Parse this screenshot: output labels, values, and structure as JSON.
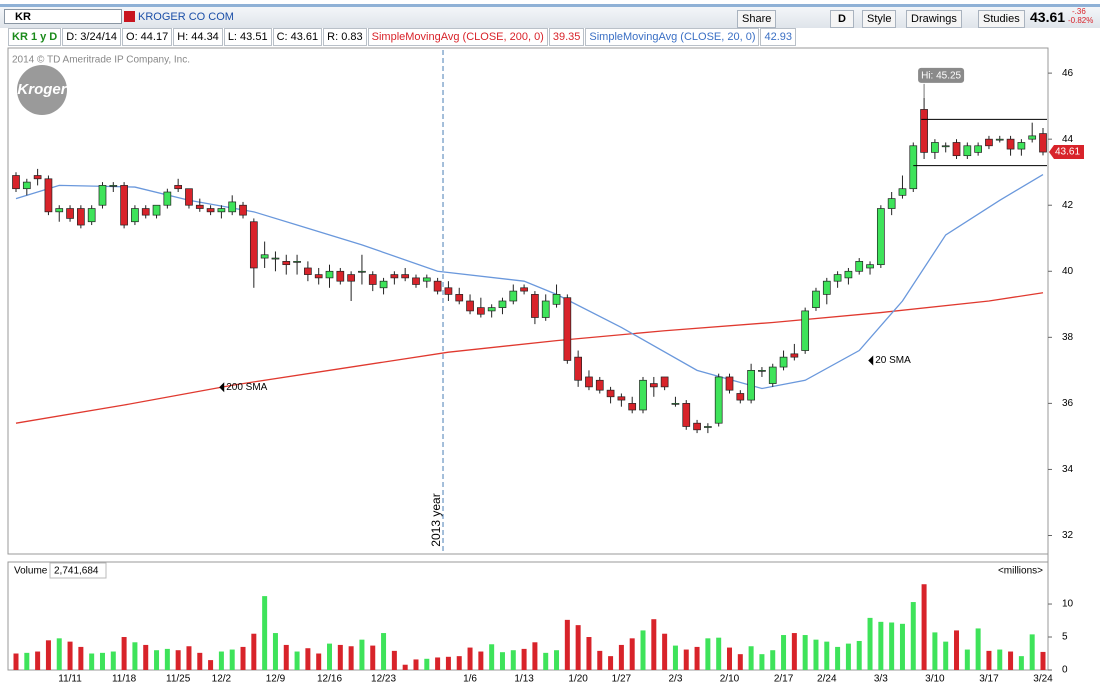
{
  "toolbar": {
    "symbol": "KR",
    "company": "KROGER CO COM",
    "share": "Share",
    "period": "D",
    "style": "Style",
    "drawings": "Drawings",
    "studies": "Studies",
    "last": "43.61",
    "change": "-.36",
    "change_pct": "-0.82%"
  },
  "status": {
    "chart": "KR 1 y D",
    "date": "D: 3/24/14",
    "open": "O: 44.17",
    "high": "H: 44.34",
    "low": "L: 43.51",
    "close": "C: 43.61",
    "range": "R: 0.83",
    "sma200": "SimpleMovingAvg (CLOSE, 200, 0)",
    "sma200_value": "39.35",
    "sma20": "SimpleMovingAvg (CLOSE, 20, 0)",
    "sma20_value": "42.93"
  },
  "copyright": "2014 © TD Ameritrade IP Company, Inc.",
  "logo": "Kroger",
  "volume_panel": {
    "label": "Volume",
    "value": "2,741,684",
    "units": "<millions>"
  },
  "chart_data": {
    "type": "candlestick",
    "categories": [
      null,
      null,
      null,
      null,
      null,
      "11/11",
      null,
      null,
      null,
      null,
      "11/18",
      null,
      null,
      null,
      null,
      "11/25",
      null,
      null,
      null,
      "12/2",
      null,
      null,
      null,
      null,
      "12/9",
      null,
      null,
      null,
      null,
      "12/16",
      null,
      null,
      null,
      null,
      "12/23",
      null,
      null,
      null,
      null,
      null,
      null,
      null,
      "1/6",
      null,
      null,
      null,
      null,
      "1/13",
      null,
      null,
      null,
      null,
      "1/20",
      null,
      null,
      null,
      "1/27",
      null,
      null,
      null,
      null,
      "2/3",
      null,
      null,
      null,
      null,
      "2/10",
      null,
      null,
      null,
      null,
      "2/17",
      null,
      null,
      null,
      "2/24",
      null,
      null,
      null,
      null,
      "3/3",
      null,
      null,
      null,
      null,
      "3/10",
      null,
      null,
      null,
      null,
      "3/17",
      null,
      null,
      null,
      null,
      "3/24"
    ],
    "open": [
      42.9,
      42.5,
      42.9,
      42.8,
      41.8,
      41.9,
      41.9,
      41.5,
      42.0,
      42.6,
      42.6,
      41.5,
      41.9,
      41.7,
      42.0,
      42.6,
      42.5,
      42.0,
      41.9,
      41.8,
      41.8,
      42.0,
      41.5,
      40.4,
      40.4,
      40.3,
      40.3,
      40.1,
      39.9,
      39.8,
      40.0,
      39.9,
      40.0,
      39.9,
      39.5,
      39.9,
      39.9,
      39.8,
      39.7,
      39.7,
      39.5,
      39.3,
      39.1,
      38.9,
      38.8,
      38.9,
      39.1,
      39.5,
      39.3,
      38.6,
      39.0,
      39.2,
      37.4,
      36.8,
      36.7,
      36.4,
      36.2,
      36.0,
      35.8,
      36.6,
      36.8,
      36.0,
      36.0,
      35.4,
      35.3,
      35.4,
      36.8,
      36.3,
      36.1,
      37.0,
      36.6,
      37.1,
      37.5,
      37.6,
      38.9,
      39.3,
      39.7,
      39.8,
      40.0,
      40.1,
      40.2,
      41.9,
      42.3,
      42.5,
      44.9,
      43.6,
      43.8,
      43.9,
      43.5,
      43.6,
      44.0,
      44.0,
      44.0,
      43.7,
      44.0,
      44.17
    ],
    "high": [
      43.0,
      42.8,
      43.1,
      42.9,
      42.0,
      42.0,
      42.0,
      42.0,
      42.7,
      42.7,
      42.7,
      42.0,
      42.0,
      42.0,
      42.5,
      42.8,
      42.5,
      42.2,
      42.0,
      42.0,
      42.3,
      42.1,
      41.6,
      40.9,
      40.6,
      40.5,
      40.5,
      40.3,
      40.1,
      40.2,
      40.1,
      40.0,
      40.5,
      40.0,
      39.8,
      40.0,
      40.1,
      39.9,
      39.9,
      39.8,
      39.7,
      39.5,
      39.3,
      39.2,
      39.0,
      39.2,
      39.6,
      39.6,
      39.4,
      39.3,
      39.6,
      39.3,
      37.6,
      37.0,
      36.8,
      36.5,
      36.3,
      36.2,
      36.8,
      36.8,
      36.8,
      36.2,
      36.1,
      35.5,
      35.4,
      36.9,
      36.9,
      36.4,
      37.2,
      37.1,
      37.2,
      37.6,
      37.8,
      38.9,
      39.5,
      39.8,
      40.0,
      40.1,
      40.4,
      40.3,
      42.0,
      42.4,
      42.9,
      43.9,
      45.25,
      44.0,
      43.9,
      44.0,
      43.9,
      43.9,
      44.1,
      44.1,
      44.1,
      44.0,
      44.5,
      44.34
    ],
    "low": [
      42.4,
      42.3,
      42.6,
      41.7,
      41.5,
      41.5,
      41.3,
      41.4,
      41.9,
      42.4,
      41.3,
      41.4,
      41.6,
      41.6,
      41.9,
      42.4,
      41.9,
      41.8,
      41.7,
      41.6,
      41.7,
      41.6,
      39.5,
      40.1,
      40.0,
      39.9,
      39.9,
      39.7,
      39.6,
      39.5,
      39.6,
      39.1,
      39.6,
      39.4,
      39.3,
      39.6,
      39.7,
      39.5,
      39.5,
      39.3,
      39.1,
      39.0,
      38.7,
      38.6,
      38.6,
      38.7,
      39.0,
      39.3,
      38.4,
      38.5,
      38.9,
      37.2,
      36.5,
      36.4,
      36.3,
      36.0,
      35.9,
      35.7,
      35.7,
      36.2,
      36.4,
      35.9,
      35.2,
      35.1,
      35.1,
      35.3,
      36.3,
      36.0,
      36.0,
      36.8,
      36.5,
      37.0,
      37.3,
      37.5,
      38.8,
      39.0,
      39.5,
      39.6,
      39.9,
      39.9,
      40.1,
      41.7,
      42.2,
      42.4,
      43.4,
      43.4,
      43.6,
      43.4,
      43.4,
      43.5,
      43.7,
      43.9,
      43.5,
      43.5,
      43.9,
      43.51
    ],
    "close": [
      42.5,
      42.7,
      42.8,
      41.8,
      41.9,
      41.6,
      41.4,
      41.9,
      42.6,
      42.6,
      41.4,
      41.9,
      41.7,
      42.0,
      42.4,
      42.5,
      42.0,
      41.9,
      41.8,
      41.9,
      42.1,
      41.7,
      40.1,
      40.5,
      40.4,
      40.2,
      40.3,
      39.9,
      39.8,
      40.0,
      39.7,
      39.7,
      40.0,
      39.6,
      39.7,
      39.8,
      39.8,
      39.6,
      39.8,
      39.4,
      39.3,
      39.1,
      38.8,
      38.7,
      38.9,
      39.1,
      39.4,
      39.4,
      38.6,
      39.1,
      39.3,
      37.3,
      36.7,
      36.5,
      36.4,
      36.2,
      36.1,
      35.8,
      36.7,
      36.5,
      36.5,
      36.0,
      35.3,
      35.2,
      35.3,
      36.8,
      36.4,
      36.1,
      37.0,
      37.0,
      37.1,
      37.4,
      37.4,
      38.8,
      39.4,
      39.7,
      39.9,
      40.0,
      40.3,
      40.2,
      41.9,
      42.2,
      42.5,
      43.8,
      43.6,
      43.9,
      43.8,
      43.5,
      43.8,
      43.8,
      43.8,
      44.0,
      43.7,
      43.9,
      44.1,
      43.61
    ],
    "volume": [
      2.5,
      2.6,
      2.8,
      4.5,
      4.8,
      4.3,
      3.5,
      2.5,
      2.6,
      2.8,
      5.0,
      4.2,
      3.8,
      3.0,
      3.2,
      3.0,
      3.6,
      2.6,
      1.5,
      2.8,
      3.1,
      3.5,
      5.5,
      11.2,
      5.6,
      3.8,
      2.8,
      3.3,
      2.5,
      4.0,
      3.8,
      3.6,
      4.6,
      3.7,
      5.6,
      2.9,
      0.8,
      1.6,
      1.7,
      1.9,
      2.0,
      2.1,
      3.4,
      2.8,
      3.9,
      2.7,
      3.0,
      3.2,
      4.2,
      2.6,
      3.0,
      7.6,
      6.8,
      5.0,
      2.9,
      2.1,
      3.8,
      4.8,
      6.0,
      7.7,
      5.5,
      3.7,
      3.1,
      3.5,
      4.8,
      4.9,
      3.4,
      2.4,
      3.6,
      2.4,
      3.0,
      5.3,
      5.6,
      5.3,
      4.6,
      4.3,
      3.5,
      4.0,
      4.4,
      7.9,
      7.3,
      7.2,
      7.0,
      10.3,
      13.0,
      5.7,
      4.3,
      6.0,
      3.1,
      6.3,
      2.9,
      3.1,
      2.8,
      2.1,
      5.4,
      2.74
    ],
    "up_color": "#3ee35a",
    "down_color": "#d8232a",
    "ylim": [
      31.5,
      46.7
    ],
    "yticks": [
      32,
      34,
      36,
      38,
      40,
      42,
      44,
      46
    ],
    "volume_ylim": [
      0,
      14.4
    ],
    "volume_yticks": [
      0,
      5,
      10
    ],
    "series": [
      {
        "name": "200 SMA",
        "color": "#e0392f",
        "x": [
          0,
          10,
          20,
          30,
          40,
          50,
          60,
          70,
          80,
          90,
          95
        ],
        "values": [
          35.4,
          35.95,
          36.55,
          37.05,
          37.55,
          37.9,
          38.2,
          38.45,
          38.75,
          39.1,
          39.35
        ]
      },
      {
        "name": "20 SMA",
        "color": "#6a98dc",
        "x": [
          0,
          4,
          11,
          16,
          22,
          26,
          32,
          39,
          47,
          50,
          56,
          63,
          69,
          73,
          78,
          82,
          86,
          91,
          95
        ],
        "values": [
          42.2,
          42.6,
          42.55,
          42.15,
          41.8,
          41.4,
          40.8,
          40.0,
          39.7,
          39.3,
          38.3,
          37.0,
          36.45,
          36.7,
          37.6,
          39.1,
          41.1,
          42.15,
          42.93
        ]
      }
    ],
    "high_note": {
      "label": "Hi: 45.25",
      "x": 84,
      "value": 45.25
    },
    "channel": {
      "x": [
        83,
        95
      ],
      "values": [
        43.2,
        44.6
      ]
    },
    "year_marker": {
      "label": "2013 year",
      "x": 39.5
    },
    "last_price": 43.61
  }
}
